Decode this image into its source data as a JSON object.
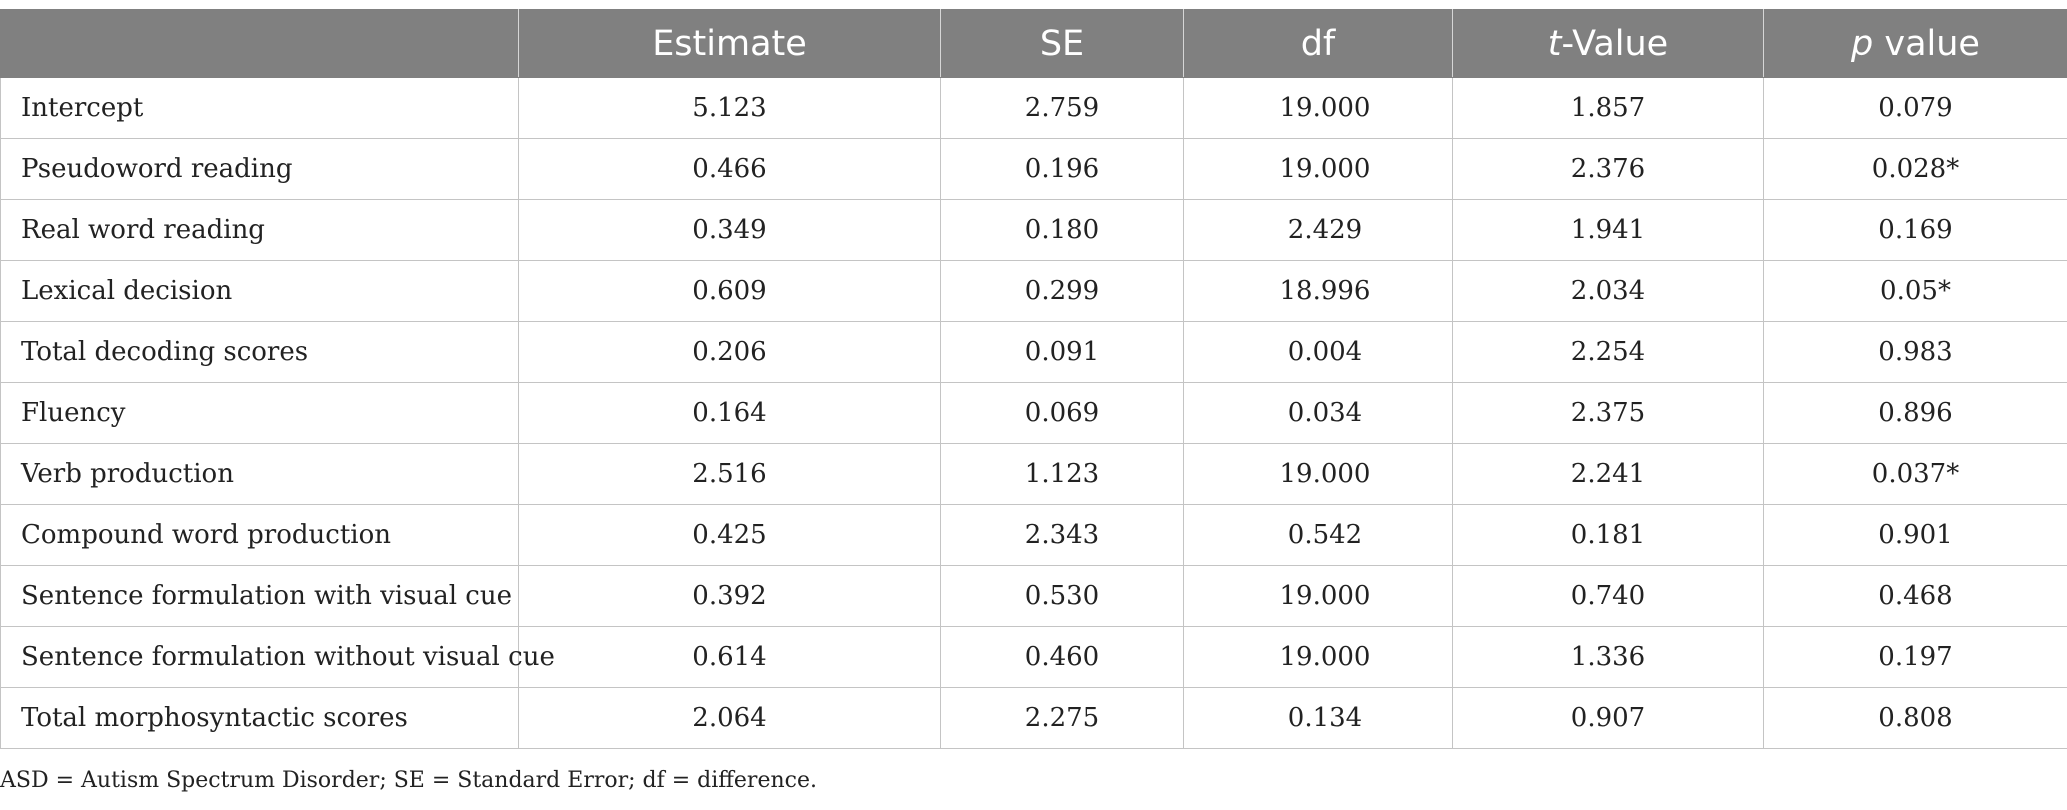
{
  "table": {
    "headers": {
      "stub": "",
      "estimate": "Estimate",
      "se": "SE",
      "df": "df",
      "t_value_prefix": "t",
      "t_value_suffix": "-Value",
      "p_value_prefix": "p",
      "p_value_suffix": " value"
    },
    "rows": [
      {
        "label": "Intercept",
        "estimate": "5.123",
        "se": "2.759",
        "df": "19.000",
        "t": "1.857",
        "p": "0.079"
      },
      {
        "label": "Pseudoword reading",
        "estimate": "0.466",
        "se": "0.196",
        "df": "19.000",
        "t": "2.376",
        "p": "0.028*"
      },
      {
        "label": "Real word reading",
        "estimate": "0.349",
        "se": "0.180",
        "df": "2.429",
        "t": "1.941",
        "p": "0.169"
      },
      {
        "label": "Lexical decision",
        "estimate": "0.609",
        "se": "0.299",
        "df": "18.996",
        "t": "2.034",
        "p": "0.05*"
      },
      {
        "label": "Total decoding scores",
        "estimate": "0.206",
        "se": "0.091",
        "df": "0.004",
        "t": "2.254",
        "p": "0.983"
      },
      {
        "label": "Fluency",
        "estimate": "0.164",
        "se": "0.069",
        "df": "0.034",
        "t": "2.375",
        "p": "0.896"
      },
      {
        "label": "Verb production",
        "estimate": "2.516",
        "se": "1.123",
        "df": "19.000",
        "t": "2.241",
        "p": "0.037*"
      },
      {
        "label": "Compound word production",
        "estimate": "0.425",
        "se": "2.343",
        "df": "0.542",
        "t": "0.181",
        "p": "0.901"
      },
      {
        "label": "Sentence formulation with visual cue",
        "estimate": "0.392",
        "se": "0.530",
        "df": "19.000",
        "t": "0.740",
        "p": "0.468"
      },
      {
        "label": "Sentence formulation without visual cue",
        "estimate": "0.614",
        "se": "0.460",
        "df": "19.000",
        "t": "1.336",
        "p": "0.197"
      },
      {
        "label": "Total morphosyntactic scores",
        "estimate": "2.064",
        "se": "2.275",
        "df": "0.134",
        "t": "0.907",
        "p": "0.808"
      }
    ]
  },
  "footnote": "ASD = Autism Spectrum Disorder; SE = Standard Error; df = difference."
}
